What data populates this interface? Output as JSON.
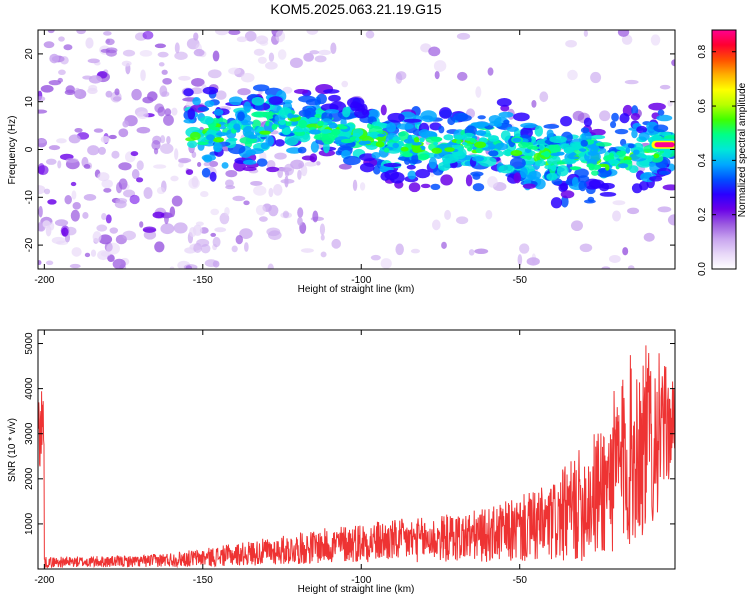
{
  "title": "KOM5.2025.063.21.19.G15",
  "colors": {
    "spectrogram_background": "#ffffff",
    "snr_line": "#ee3333",
    "colormap": [
      "#ffffff",
      "#e8d8f8",
      "#c9a6ef",
      "#9b5ae0",
      "#6a00e8",
      "#2a00ff",
      "#0050ff",
      "#00a8ff",
      "#00e8d8",
      "#00ff88",
      "#40ff00",
      "#b8ff00",
      "#ffff00",
      "#ffb000",
      "#ff5000",
      "#ff0030",
      "#ff0090"
    ]
  },
  "chart_data": [
    {
      "type": "heatmap",
      "title": "KOM5.2025.063.21.19.G15",
      "xlabel": "Height of straight line (km)",
      "ylabel": "Frequency (Hz)",
      "xlim": [
        -202,
        -1
      ],
      "ylim": [
        -25,
        25
      ],
      "xticks": [
        -200,
        -150,
        -100,
        -50
      ],
      "yticks": [
        -20,
        -10,
        0,
        10,
        20
      ],
      "colorbar": {
        "label": "Normalized spectral amplitude",
        "range": [
          0.0,
          0.88
        ],
        "ticks": [
          "0.0",
          "0.2",
          "0.4",
          "0.6",
          "0.8"
        ]
      },
      "ridge": {
        "description_points": [
          {
            "x": -150,
            "y": 3
          },
          {
            "x": -120,
            "y": 6
          },
          {
            "x": -100,
            "y": 3
          },
          {
            "x": -80,
            "y": 0
          },
          {
            "x": -60,
            "y": 2
          },
          {
            "x": -40,
            "y": -2
          },
          {
            "x": -20,
            "y": -2
          },
          {
            "x": -2,
            "y": 1
          }
        ],
        "peak": {
          "x": -4,
          "y": 1,
          "amplitude": 0.88
        }
      }
    },
    {
      "type": "line",
      "xlabel": "Height of straight line (km)",
      "ylabel": "SNR (10 * v/v)",
      "xlim": [
        -202,
        -1
      ],
      "ylim": [
        0,
        5300
      ],
      "xticks": [
        -200,
        -150,
        -100,
        -50
      ],
      "yticks": [
        1000,
        2000,
        3000,
        4000,
        5000
      ],
      "envelope": [
        {
          "x": -200,
          "mean": 150,
          "amp": 120
        },
        {
          "x": -170,
          "mean": 170,
          "amp": 130
        },
        {
          "x": -150,
          "mean": 250,
          "amp": 200
        },
        {
          "x": -120,
          "mean": 450,
          "amp": 350
        },
        {
          "x": -100,
          "mean": 600,
          "amp": 450
        },
        {
          "x": -80,
          "mean": 650,
          "amp": 500
        },
        {
          "x": -60,
          "mean": 750,
          "amp": 600
        },
        {
          "x": -40,
          "mean": 1000,
          "amp": 900
        },
        {
          "x": -25,
          "mean": 1700,
          "amp": 1500
        },
        {
          "x": -15,
          "mean": 2600,
          "amp": 2200
        },
        {
          "x": -8,
          "mean": 3000,
          "amp": 2100
        },
        {
          "x": -2,
          "mean": 3200,
          "amp": 1000
        }
      ]
    }
  ]
}
